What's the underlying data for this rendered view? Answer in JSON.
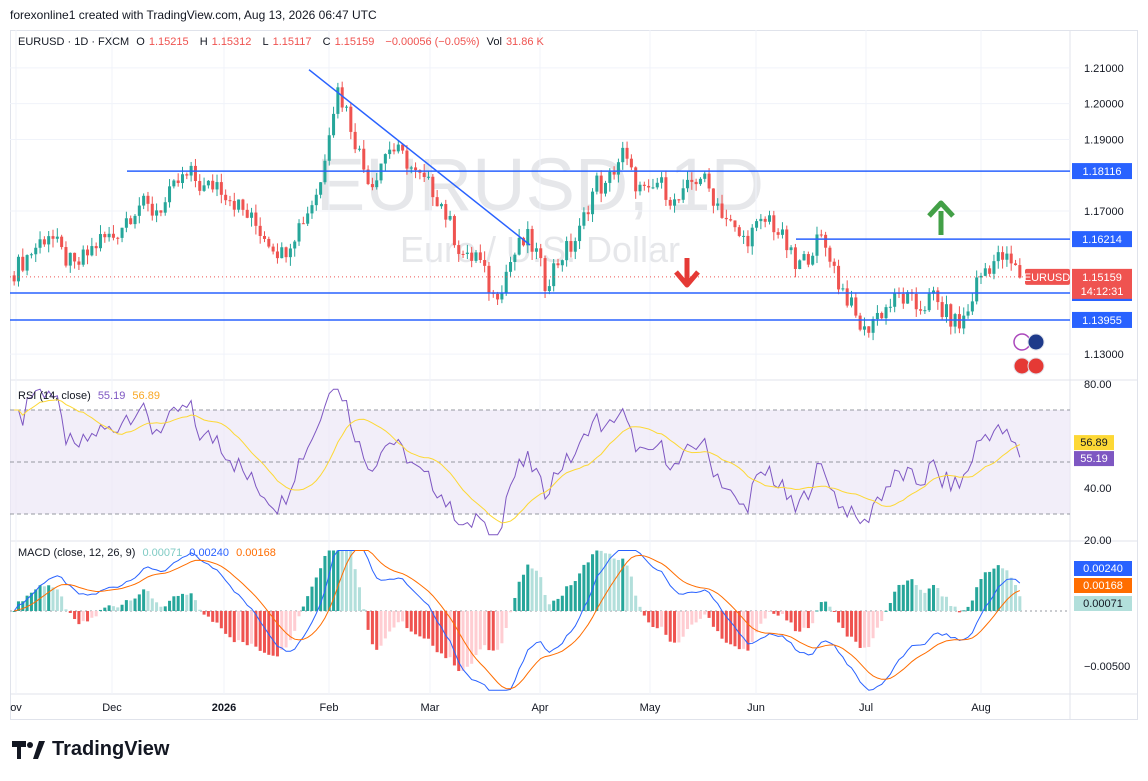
{
  "header": {
    "text": "forexonline1 created with TradingView.com, Aug 13, 2026 06:47 UTC"
  },
  "watermark": {
    "symbol": "EURUSD, 1D",
    "name": "Euro / U.S. Dollar"
  },
  "legend": {
    "symbol": "EURUSD · 1D · FXCM",
    "o_label": "O",
    "o": "1.15215",
    "h_label": "H",
    "h": "1.15312",
    "l_label": "L",
    "l": "1.15117",
    "c_label": "C",
    "c": "1.15159",
    "change": "−0.00056 (−0.05%)",
    "vol_label": "Vol",
    "vol": "31.86 K"
  },
  "rsi_legend": {
    "label": "RSI (14, close)",
    "rsi": "55.19",
    "ma": "56.89"
  },
  "macd_legend": {
    "label": "MACD (close, 12, 26, 9)",
    "hist": "0.00071",
    "macd": "0.00240",
    "signal": "0.00168"
  },
  "brand": {
    "name": "TradingView"
  },
  "colors": {
    "up": "#26a69a",
    "down": "#ef5350",
    "line": "#2962ff",
    "arrow_up": "#43a047",
    "arrow_down": "#e53935",
    "rsi": "#7e57c2",
    "rsi_ma": "#fdd835",
    "signal": "#ff6d00"
  },
  "chart_data": [
    {
      "type": "candlestick",
      "title": "EURUSD · 1D · FXCM",
      "x_ticks": [
        "ov",
        "Dec",
        "2026",
        "Feb",
        "Mar",
        "Apr",
        "May",
        "Jun",
        "Jul",
        "Aug"
      ],
      "y_ticks": [
        1.13,
        1.17,
        1.19,
        1.2,
        1.21
      ],
      "ylim": [
        1.125,
        1.215
      ],
      "horizontal_levels": [
        {
          "label": "1.18116",
          "value": 1.18116
        },
        {
          "label": "1.16214",
          "value": 1.16214
        },
        {
          "label": "1.14708",
          "value": 1.14708
        },
        {
          "label": "1.13955",
          "value": 1.13955
        }
      ],
      "current_price": {
        "symbol": "EURUSD",
        "value": "1.15159",
        "countdown": "14:12:31"
      },
      "trendline": {
        "from": {
          "x": "late Jan",
          "y": 1.2095
        },
        "to": {
          "x": "late Mar",
          "y": 1.1605
        }
      },
      "annotations": [
        "down arrow near May",
        "up arrow near late Jul"
      ],
      "close_path": [
        [
          0,
          1.152
        ],
        [
          8,
          1.156
        ],
        [
          16,
          1.16
        ],
        [
          24,
          1.164
        ],
        [
          32,
          1.158
        ],
        [
          40,
          1.154
        ],
        [
          48,
          1.158
        ],
        [
          56,
          1.162
        ],
        [
          64,
          1.163
        ],
        [
          72,
          1.168
        ],
        [
          80,
          1.172
        ],
        [
          88,
          1.17
        ],
        [
          96,
          1.172
        ],
        [
          104,
          1.178
        ],
        [
          112,
          1.18
        ],
        [
          120,
          1.176
        ],
        [
          128,
          1.178
        ],
        [
          136,
          1.174
        ],
        [
          144,
          1.17
        ],
        [
          152,
          1.166
        ],
        [
          160,
          1.162
        ],
        [
          168,
          1.158
        ],
        [
          176,
          1.164
        ],
        [
          184,
          1.17
        ],
        [
          192,
          1.178
        ],
        [
          198,
          1.194
        ],
        [
          202,
          1.204
        ],
        [
          206,
          1.198
        ],
        [
          210,
          1.19
        ],
        [
          214,
          1.182
        ],
        [
          220,
          1.178
        ],
        [
          226,
          1.184
        ],
        [
          232,
          1.188
        ],
        [
          238,
          1.186
        ],
        [
          244,
          1.184
        ],
        [
          250,
          1.18
        ],
        [
          256,
          1.178
        ],
        [
          262,
          1.176
        ],
        [
          268,
          1.172
        ],
        [
          274,
          1.166
        ],
        [
          280,
          1.16
        ],
        [
          286,
          1.156
        ],
        [
          292,
          1.158
        ],
        [
          296,
          1.152
        ],
        [
          300,
          1.146
        ],
        [
          306,
          1.15
        ],
        [
          312,
          1.156
        ],
        [
          318,
          1.16
        ],
        [
          324,
          1.162
        ],
        [
          330,
          1.158
        ],
        [
          336,
          1.15
        ],
        [
          342,
          1.154
        ],
        [
          348,
          1.158
        ],
        [
          354,
          1.16
        ],
        [
          360,
          1.164
        ],
        [
          366,
          1.172
        ],
        [
          372,
          1.178
        ],
        [
          378,
          1.176
        ],
        [
          384,
          1.182
        ],
        [
          390,
          1.186
        ],
        [
          396,
          1.18
        ],
        [
          402,
          1.176
        ],
        [
          408,
          1.174
        ],
        [
          414,
          1.178
        ],
        [
          420,
          1.176
        ],
        [
          426,
          1.172
        ],
        [
          432,
          1.174
        ],
        [
          438,
          1.178
        ],
        [
          444,
          1.18
        ],
        [
          450,
          1.176
        ],
        [
          456,
          1.172
        ],
        [
          462,
          1.168
        ],
        [
          468,
          1.164
        ],
        [
          474,
          1.162
        ],
        [
          480,
          1.164
        ],
        [
          486,
          1.166
        ],
        [
          492,
          1.168
        ],
        [
          498,
          1.164
        ],
        [
          504,
          1.16
        ],
        [
          510,
          1.154
        ],
        [
          516,
          1.156
        ],
        [
          522,
          1.16
        ],
        [
          528,
          1.162
        ],
        [
          532,
          1.158
        ],
        [
          536,
          1.15
        ],
        [
          540,
          1.146
        ],
        [
          546,
          1.14
        ],
        [
          552,
          1.136
        ],
        [
          558,
          1.14
        ],
        [
          564,
          1.142
        ],
        [
          570,
          1.144
        ],
        [
          576,
          1.146
        ],
        [
          582,
          1.145
        ],
        [
          588,
          1.143
        ],
        [
          594,
          1.144
        ],
        [
          600,
          1.146
        ],
        [
          606,
          1.142
        ],
        [
          612,
          1.14
        ],
        [
          618,
          1.138
        ],
        [
          624,
          1.142
        ],
        [
          630,
          1.15
        ],
        [
          636,
          1.154
        ],
        [
          642,
          1.156
        ],
        [
          648,
          1.157
        ],
        [
          654,
          1.155
        ],
        [
          660,
          1.152
        ]
      ]
    },
    {
      "type": "line",
      "title": "RSI (14, close)",
      "y_ticks": [
        20.0,
        40.0,
        80.0
      ],
      "ylim": [
        20,
        80
      ],
      "bands": [
        30,
        50,
        70
      ],
      "series": [
        {
          "name": "RSI",
          "last": 55.19
        },
        {
          "name": "MA",
          "last": 56.89
        }
      ]
    },
    {
      "type": "bar",
      "title": "MACD (close, 12, 26, 9)",
      "y_ticks": [
        -0.005
      ],
      "series": [
        {
          "name": "Histogram",
          "last": 0.00071
        },
        {
          "name": "MACD",
          "last": 0.0024
        },
        {
          "name": "Signal",
          "last": 0.00168
        }
      ]
    }
  ]
}
